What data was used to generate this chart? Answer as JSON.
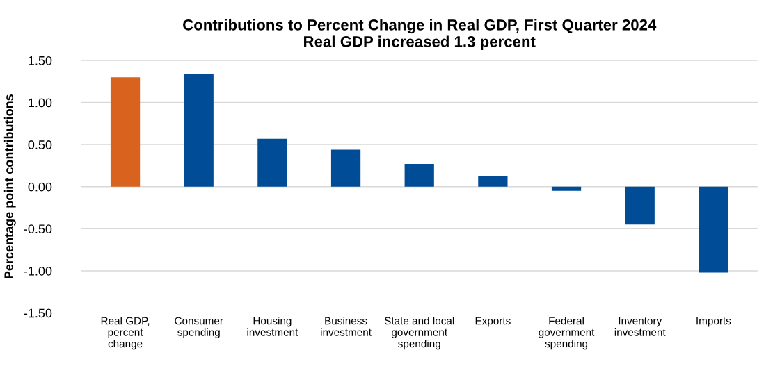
{
  "chart_data": {
    "type": "bar",
    "title": "Contributions to Percent Change in Real GDP, First Quarter 2024\nReal GDP increased 1.3 percent",
    "ylabel": "Percentage point contributions",
    "categories": [
      "Real GDP,\npercent\nchange",
      "Consumer\nspending",
      "Housing\ninvestment",
      "Business\ninvestment",
      "State and local\ngovernment\nspending",
      "Exports",
      "Federal\ngovernment\nspending",
      "Inventory\ninvestment",
      "Imports"
    ],
    "values": [
      1.3,
      1.34,
      0.57,
      0.44,
      0.27,
      0.13,
      -0.05,
      -0.45,
      -1.02
    ],
    "colors": [
      "#d9631e",
      "#004c97",
      "#004c97",
      "#004c97",
      "#004c97",
      "#004c97",
      "#004c97",
      "#004c97",
      "#004c97"
    ],
    "ylim": [
      -1.5,
      1.5
    ],
    "yticks": [
      {
        "value": -1.5,
        "label": "-1.50"
      },
      {
        "value": -1.0,
        "label": "-1.00"
      },
      {
        "value": -0.5,
        "label": "-0.50"
      },
      {
        "value": 0,
        "label": "0.00"
      },
      {
        "value": 0.5,
        "label": "0.50"
      },
      {
        "value": 1.0,
        "label": "1.00"
      },
      {
        "value": 1.5,
        "label": "1.50"
      }
    ],
    "grid": "y",
    "legend": false
  }
}
